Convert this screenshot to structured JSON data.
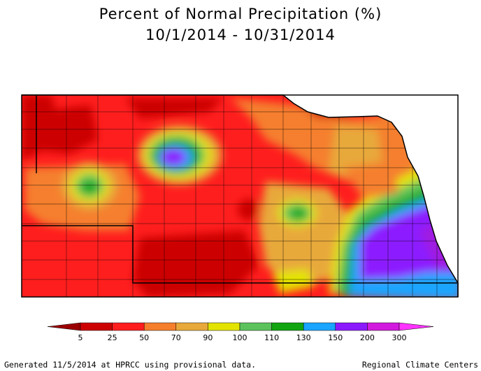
{
  "title": {
    "line1": "Percent of Normal Precipitation (%)",
    "line2": "10/1/2014 - 10/31/2014"
  },
  "legend": {
    "breaks": [
      "5",
      "25",
      "50",
      "70",
      "90",
      "100",
      "110",
      "130",
      "150",
      "200",
      "300"
    ],
    "colors": [
      "#9b0000",
      "#cc0000",
      "#ff1e1e",
      "#f57f2d",
      "#e8a93a",
      "#e3e300",
      "#5cc35c",
      "#11a611",
      "#1aa5ff",
      "#8c1aff",
      "#d21ade",
      "#ff33ff"
    ]
  },
  "footer": {
    "left": "Generated 11/5/2014 at HPRCC using provisional data.",
    "right": "Regional Climate Centers"
  }
}
